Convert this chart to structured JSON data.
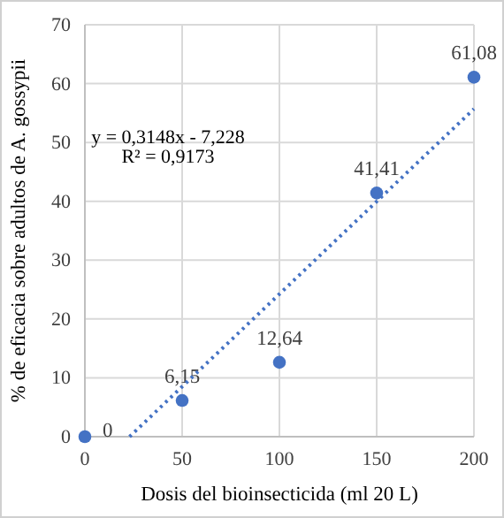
{
  "chart_data": {
    "type": "scatter",
    "xlabel": "Dosis del bioinsecticida (ml  20 L)",
    "ylabel": "% de eficacia sobre adultos de A. gossypii",
    "x": [
      0,
      50,
      100,
      150,
      200
    ],
    "series": [
      {
        "color": "#4472c4",
        "values": [
          0,
          6.15,
          12.64,
          41.41,
          61.08
        ],
        "value_labels": [
          "0",
          "6,15",
          "12,64",
          "41,41",
          "61,08"
        ],
        "marker": "circle"
      },
      {
        "type": "line",
        "color": "#4472c4",
        "x": [
          22.96,
          200
        ],
        "values": [
          0,
          55.7
        ],
        "line_style": "dotted"
      }
    ],
    "annotations": [
      "y = 0,3148x - 7,228",
      "R² = 0,9173"
    ],
    "xlim": [
      0,
      200
    ],
    "xticks": [
      0,
      50,
      100,
      150,
      200
    ],
    "ylim": [
      0,
      70
    ],
    "yticks": [
      0,
      10,
      20,
      30,
      40,
      50,
      60,
      70
    ],
    "grid": true
  }
}
